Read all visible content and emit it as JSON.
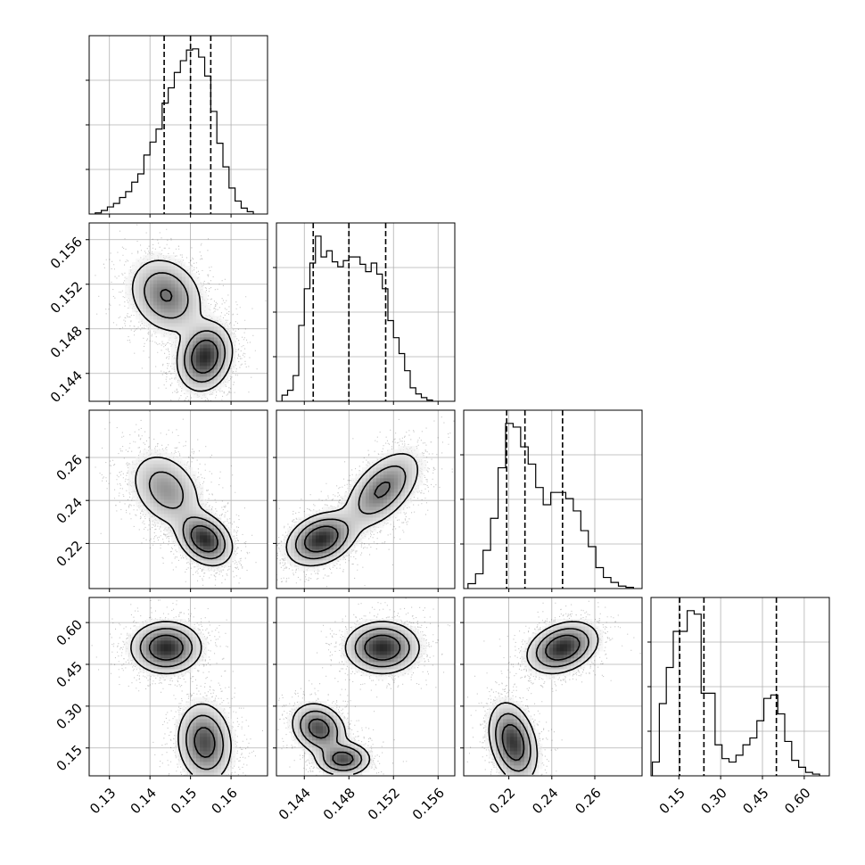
{
  "chart_data": {
    "type": "corner",
    "n_params": 4,
    "grid": true,
    "contour_levels": 3,
    "params": [
      {
        "xlim": [
          0.125,
          0.169
        ],
        "ticks": [
          0.13,
          0.14,
          0.15,
          0.16
        ],
        "tick_labels": [
          "0.13",
          "0.14",
          "0.15",
          "0.16"
        ],
        "quantiles": [
          0.1435,
          0.15,
          0.155
        ],
        "hist": {
          "bins": [
            0.1265,
            0.128,
            0.1295,
            0.131,
            0.1325,
            0.134,
            0.1355,
            0.137,
            0.1385,
            0.14,
            0.1415,
            0.143,
            0.1445,
            0.146,
            0.1475,
            0.149,
            0.1505,
            0.152,
            0.1535,
            0.155,
            0.1565,
            0.158,
            0.1595,
            0.161,
            0.1625,
            0.164,
            0.1655
          ],
          "values": [
            1,
            3,
            6,
            9,
            14,
            19,
            27,
            34,
            50,
            61,
            72,
            94,
            107,
            120,
            130,
            139,
            140,
            133,
            117,
            87,
            60,
            40,
            22,
            11,
            5,
            2
          ]
        }
      },
      {
        "xlim": [
          0.1415,
          0.1575
        ],
        "ticks": [
          0.144,
          0.148,
          0.152,
          0.156
        ],
        "tick_labels": [
          "0.144",
          "0.148",
          "0.152",
          "0.156"
        ],
        "quantiles": [
          0.1448,
          0.148,
          0.1513
        ],
        "hist": {
          "bins": [
            0.142,
            0.1425,
            0.143,
            0.1435,
            0.144,
            0.1445,
            0.145,
            0.1455,
            0.146,
            0.1465,
            0.147,
            0.1475,
            0.148,
            0.1485,
            0.149,
            0.1495,
            0.15,
            0.1505,
            0.151,
            0.1515,
            0.152,
            0.1525,
            0.153,
            0.1535,
            0.154,
            0.1545,
            0.155,
            0.1555
          ],
          "values": [
            5,
            9,
            21,
            62,
            92,
            113,
            135,
            118,
            123,
            114,
            110,
            115,
            118,
            118,
            112,
            106,
            113,
            104,
            92,
            66,
            52,
            39,
            25,
            11,
            6,
            3,
            1
          ]
        }
      },
      {
        "xlim": [
          0.199,
          0.282
        ],
        "ticks": [
          0.22,
          0.24,
          0.26
        ],
        "tick_labels": [
          "0.22",
          "0.24",
          "0.26"
        ],
        "quantiles": [
          0.219,
          0.2275,
          0.245
        ],
        "hist": {
          "bins": [
            0.201,
            0.2045,
            0.208,
            0.2115,
            0.215,
            0.2185,
            0.222,
            0.2255,
            0.229,
            0.2325,
            0.236,
            0.2395,
            0.243,
            0.2465,
            0.25,
            0.2535,
            0.257,
            0.2605,
            0.264,
            0.2675,
            0.271,
            0.2745,
            0.278
          ],
          "values": [
            4,
            12,
            31,
            57,
            98,
            134,
            131,
            115,
            101,
            82,
            68,
            78,
            78,
            73,
            63,
            47,
            34,
            17,
            9,
            5,
            2,
            1
          ]
        }
      },
      {
        "xlim": [
          0.05,
          0.69
        ],
        "ticks": [
          0.15,
          0.3,
          0.45,
          0.6
        ],
        "tick_labels": [
          "0.15",
          "0.30",
          "0.45",
          "0.60"
        ],
        "quantiles": [
          0.153,
          0.24,
          0.5
        ],
        "hist": {
          "bins": [
            0.055,
            0.08,
            0.105,
            0.13,
            0.155,
            0.18,
            0.205,
            0.23,
            0.255,
            0.28,
            0.305,
            0.33,
            0.355,
            0.38,
            0.405,
            0.43,
            0.455,
            0.48,
            0.505,
            0.53,
            0.555,
            0.58,
            0.605,
            0.63,
            0.655
          ],
          "values": [
            8,
            42,
            63,
            84,
            84,
            96,
            94,
            48,
            48,
            18,
            10,
            8,
            12,
            18,
            22,
            32,
            45,
            47,
            36,
            20,
            9,
            5,
            2,
            1
          ]
        }
      }
    ],
    "pairs": [
      {
        "row": 1,
        "col": 0,
        "modes": [
          {
            "mx": 0.144,
            "my": 0.151,
            "sx": 0.0045,
            "sy": 0.0017,
            "rho": -0.2,
            "w": 0.5
          },
          {
            "mx": 0.1535,
            "my": 0.1455,
            "sx": 0.0033,
            "sy": 0.0015,
            "rho": 0.15,
            "w": 0.5
          }
        ]
      },
      {
        "row": 2,
        "col": 0,
        "modes": [
          {
            "mx": 0.144,
            "my": 0.245,
            "sx": 0.0045,
            "sy": 0.009,
            "rho": -0.3,
            "w": 0.5
          },
          {
            "mx": 0.1535,
            "my": 0.222,
            "sx": 0.0033,
            "sy": 0.006,
            "rho": -0.3,
            "w": 0.5
          }
        ]
      },
      {
        "row": 2,
        "col": 1,
        "modes": [
          {
            "mx": 0.151,
            "my": 0.245,
            "sx": 0.0017,
            "sy": 0.009,
            "rho": 0.55,
            "w": 0.5
          },
          {
            "mx": 0.1455,
            "my": 0.222,
            "sx": 0.0015,
            "sy": 0.006,
            "rho": 0.3,
            "w": 0.5
          }
        ]
      },
      {
        "row": 3,
        "col": 0,
        "modes": [
          {
            "mx": 0.144,
            "my": 0.51,
            "sx": 0.0042,
            "sy": 0.045,
            "rho": 0.0,
            "w": 0.5
          },
          {
            "mx": 0.1535,
            "my": 0.17,
            "sx": 0.0033,
            "sy": 0.07,
            "rho": -0.1,
            "w": 0.5
          }
        ]
      },
      {
        "row": 3,
        "col": 1,
        "modes": [
          {
            "mx": 0.151,
            "my": 0.51,
            "sx": 0.0016,
            "sy": 0.045,
            "rho": 0.0,
            "w": 0.5
          },
          {
            "mx": 0.1453,
            "my": 0.22,
            "sx": 0.0012,
            "sy": 0.045,
            "rho": -0.2,
            "w": 0.3
          },
          {
            "mx": 0.1475,
            "my": 0.11,
            "sx": 0.0012,
            "sy": 0.03,
            "rho": 0.0,
            "w": 0.2
          }
        ]
      },
      {
        "row": 3,
        "col": 2,
        "modes": [
          {
            "mx": 0.245,
            "my": 0.51,
            "sx": 0.008,
            "sy": 0.045,
            "rho": 0.3,
            "w": 0.5
          },
          {
            "mx": 0.222,
            "my": 0.17,
            "sx": 0.0055,
            "sy": 0.07,
            "rho": -0.3,
            "w": 0.5
          }
        ]
      }
    ]
  }
}
